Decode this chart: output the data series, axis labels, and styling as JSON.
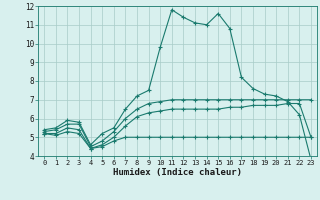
{
  "xlabel": "Humidex (Indice chaleur)",
  "x_values": [
    0,
    1,
    2,
    3,
    4,
    5,
    6,
    7,
    8,
    9,
    10,
    11,
    12,
    13,
    14,
    15,
    16,
    17,
    18,
    19,
    20,
    21,
    22,
    23
  ],
  "line1": [
    5.4,
    5.5,
    5.9,
    5.8,
    4.6,
    5.2,
    5.5,
    6.5,
    7.2,
    7.5,
    9.8,
    11.8,
    11.4,
    11.1,
    11.0,
    11.6,
    10.8,
    8.2,
    7.6,
    7.3,
    7.2,
    6.9,
    6.2,
    3.8
  ],
  "line2": [
    5.3,
    5.4,
    5.7,
    5.7,
    4.5,
    4.8,
    5.3,
    6.0,
    6.5,
    6.8,
    6.9,
    7.0,
    7.0,
    7.0,
    7.0,
    7.0,
    7.0,
    7.0,
    7.0,
    7.0,
    7.0,
    7.0,
    7.0,
    7.0
  ],
  "line3": [
    5.2,
    5.2,
    5.5,
    5.4,
    4.4,
    4.6,
    5.0,
    5.6,
    6.1,
    6.3,
    6.4,
    6.5,
    6.5,
    6.5,
    6.5,
    6.5,
    6.6,
    6.6,
    6.7,
    6.7,
    6.7,
    6.8,
    6.8,
    5.0
  ],
  "line4": [
    5.2,
    5.1,
    5.3,
    5.2,
    4.4,
    4.5,
    4.8,
    5.0,
    5.0,
    5.0,
    5.0,
    5.0,
    5.0,
    5.0,
    5.0,
    5.0,
    5.0,
    5.0,
    5.0,
    5.0,
    5.0,
    5.0,
    5.0,
    5.0
  ],
  "line_color": "#1a7a6e",
  "bg_color": "#d8f0ee",
  "grid_color": "#a8ccc8",
  "ylim": [
    4,
    12
  ],
  "xlim": [
    -0.5,
    23.5
  ],
  "yticks": [
    4,
    5,
    6,
    7,
    8,
    9,
    10,
    11,
    12
  ],
  "xticks": [
    0,
    1,
    2,
    3,
    4,
    5,
    6,
    7,
    8,
    9,
    10,
    11,
    12,
    13,
    14,
    15,
    16,
    17,
    18,
    19,
    20,
    21,
    22,
    23
  ]
}
